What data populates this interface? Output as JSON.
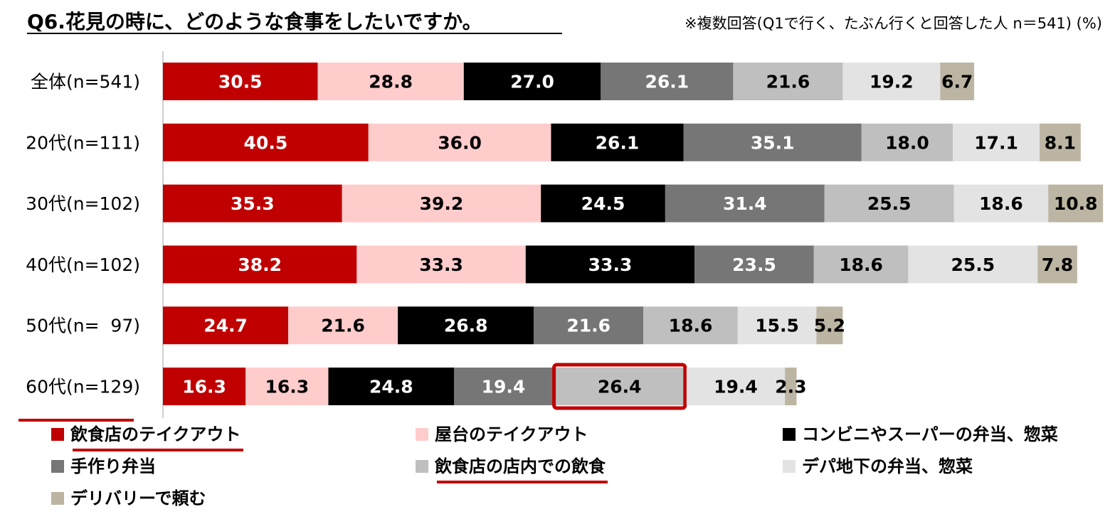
{
  "chart_data": {
    "type": "bar",
    "orientation": "horizontal",
    "stacked": true,
    "title": "Q6.花見の時に、どのような食事をしたいですか。",
    "subtitle": "※複数回答(Q1で行く、たぶん行くと回答した人 n＝541) (%)",
    "categories": [
      "全体(n=541)",
      "20代(n=111)",
      "30代(n=102)",
      "40代(n=102)",
      "50代(n=  97)",
      "60代(n=129)"
    ],
    "series": [
      {
        "name": "飲食店のテイクアウト",
        "color": "#c00000",
        "label_color": "#ffffff",
        "values": [
          30.5,
          40.5,
          35.3,
          38.2,
          24.7,
          16.3
        ]
      },
      {
        "name": "屋台のテイクアウト",
        "color": "#ffcccc",
        "label_color": "#000000",
        "values": [
          28.8,
          36.0,
          39.2,
          33.3,
          21.6,
          16.3
        ]
      },
      {
        "name": "コンビニやスーパーの弁当、惣菜",
        "color": "#000000",
        "label_color": "#ffffff",
        "values": [
          27.0,
          26.1,
          24.5,
          33.3,
          26.8,
          24.8
        ]
      },
      {
        "name": "手作り弁当",
        "color": "#767676",
        "label_color": "#ffffff",
        "values": [
          26.1,
          35.1,
          31.4,
          23.5,
          21.6,
          19.4
        ]
      },
      {
        "name": "飲食店の店内での飲食",
        "color": "#bfbfbf",
        "label_color": "#000000",
        "values": [
          21.6,
          18.0,
          25.5,
          18.6,
          18.6,
          26.4
        ]
      },
      {
        "name": "デパ地下の弁当、惣菜",
        "color": "#e3e3e3",
        "label_color": "#000000",
        "values": [
          19.2,
          17.1,
          18.6,
          25.5,
          15.5,
          19.4
        ]
      },
      {
        "name": "デリバリーで頼む",
        "color": "#bdb5a3",
        "label_color": "#000000",
        "values": [
          6.7,
          8.1,
          10.8,
          7.8,
          5.2,
          2.3
        ]
      }
    ],
    "highlights": {
      "category": "60代(n=129)",
      "highlight_cell": {
        "category": "60代(n=129)",
        "series": "飲食店の店内での飲食"
      },
      "legend": [
        "飲食店のテイクアウト",
        "飲食店の店内での飲食"
      ]
    },
    "xlabel": "",
    "ylabel": "",
    "legend_position": "bottom"
  }
}
